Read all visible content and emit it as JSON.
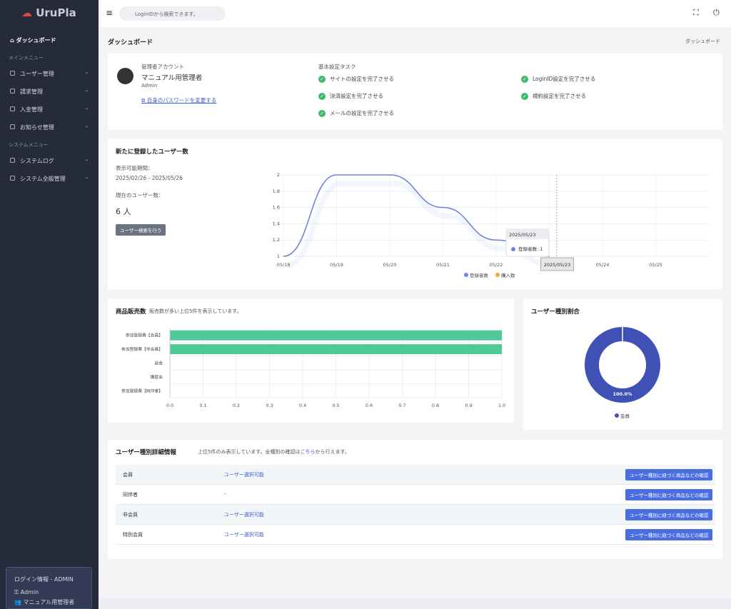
{
  "sidebar": {
    "logo": "UruPla",
    "dashboard": "ダッシュボード",
    "main_section": "メインメニュー",
    "main_items": [
      "ユーザー管理",
      "請求管理",
      "入金管理",
      "お知らせ管理"
    ],
    "system_section": "システムメニュー",
    "system_items": [
      "システムログ",
      "システム全般管理"
    ],
    "login": {
      "title": "ログイン情報 - ADMIN",
      "id": "Admin",
      "name": "マニュアル用管理者"
    }
  },
  "header": {
    "search_placeholder": "LoginIDから検索できます。"
  },
  "page": {
    "title": "ダッシュボード",
    "breadcrumb": "ダッシュボード"
  },
  "account": {
    "label": "管理者アカウント",
    "name": "マニュアル用管理者",
    "role": "Admin",
    "link": "自身のパスワードを変更する"
  },
  "tasks": {
    "title": "基本設定タスク",
    "items": [
      "サイトの設定を完了させる",
      "LoginID設定を完了させる",
      "決済設定を完了させる",
      "規約設定を完了させる",
      "メールの設定を完了させる"
    ]
  },
  "users": {
    "title": "新たに登録したユーザー数",
    "period_label": "表示可能期間：",
    "period": "2025/02/26 - 2025/05/26",
    "count_label": "現在のユーザー数：",
    "count": "6 人",
    "button": "ユーザー検索を行う",
    "chart": {
      "type": "line",
      "x": [
        "05/18",
        "05/19",
        "05/20",
        "05/21",
        "05/22",
        "05/23",
        "05/24",
        "05/25"
      ],
      "series": [
        {
          "name": "登録者数",
          "color": "#6f86e0",
          "values": [
            1,
            2,
            2,
            1.6,
            1.2,
            1,
            null,
            null
          ]
        },
        {
          "name": "購入数",
          "color": "#f0a73c",
          "values": [
            null,
            null,
            null,
            null,
            null,
            null,
            null,
            null
          ]
        }
      ],
      "ylim": [
        1,
        2
      ],
      "yticks": [
        1,
        1.2,
        1.4,
        1.6,
        1.8,
        2
      ],
      "grid": true,
      "tooltip": {
        "title": "2025/05/23",
        "label": "登録者数: 1"
      },
      "crosshair_label": "2025/05/23"
    }
  },
  "sales": {
    "title": "商品販売数",
    "subtitle": "販売数が多い上位5件を表示しています。",
    "chart": {
      "type": "bar",
      "orientation": "horizontal",
      "categories": [
        "参加登録費【会員】",
        "参加登録費【非会員】",
        "返金",
        "講習会",
        "参加登録費【同伴者】"
      ],
      "values": [
        1,
        1,
        0,
        0,
        0
      ],
      "color": "#4fc995",
      "xlim": [
        0,
        1
      ],
      "xticks": [
        {
          "value": 0,
          "label": "0.0"
        },
        0.1,
        0.2,
        0.3,
        0.4,
        0.5,
        0.6,
        0.7,
        0.8,
        0.9,
        {
          "value": 1,
          "label": "1.0"
        }
      ],
      "grid": true
    }
  },
  "ratio": {
    "title": "ユーザー種別割合",
    "chart": {
      "type": "pie",
      "categories": [
        "会員"
      ],
      "values": [
        100
      ],
      "value_labels": [
        "100.0%"
      ],
      "colors": [
        "#3f51b5"
      ]
    }
  },
  "types": {
    "title": "ユーザー種別詳細情報",
    "note": "上位5件のみ表示しています。全種別の確認は",
    "note_link": "こちら",
    "note_tail": "から行えます。",
    "rows": [
      [
        "会員",
        "ユーザー選択可能"
      ],
      [
        "同伴者",
        "-"
      ],
      [
        "非会員",
        "ユーザー選択可能"
      ],
      [
        "特別会員",
        "ユーザー選択可能"
      ]
    ],
    "button": "ユーザー種別に紐づく商品などの確認"
  }
}
